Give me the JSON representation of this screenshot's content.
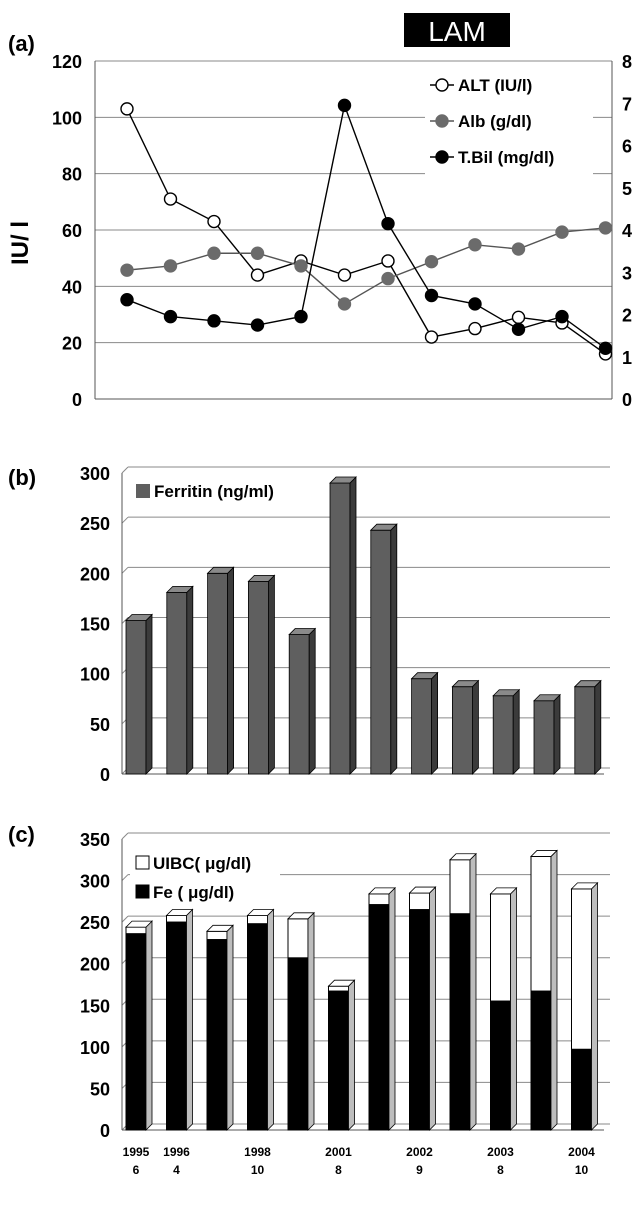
{
  "banner": "LAM",
  "colors": {
    "alt_marker": "#ffffff",
    "alb_marker": "#6b6b6b",
    "tbil_marker": "#000000",
    "ferritin_bar": "#5f5f5f",
    "fe_bar": "#000000",
    "uibc_bar": "#ffffff",
    "grid": "#8a8a8a"
  },
  "chart_data": [
    {
      "panel": "(a)",
      "type": "line",
      "ylabel": "IU/ l",
      "ylim": [
        0,
        120
      ],
      "y_ticks": [
        "0",
        "20",
        "40",
        "60",
        "80",
        "100",
        "120"
      ],
      "y2lim": [
        0,
        8
      ],
      "y2_ticks": [
        "0",
        "1",
        "2",
        "3",
        "4",
        "5",
        "6",
        "7",
        "8"
      ],
      "grid": true,
      "legend_position": "top-right",
      "x": [
        1,
        2,
        3,
        4,
        5,
        6,
        7,
        8,
        9,
        10,
        11,
        12
      ],
      "series": [
        {
          "name": "ALT (IU/l)",
          "axis": "left",
          "marker": "open-circle",
          "values": [
            103,
            71,
            63,
            44,
            49,
            44,
            49,
            22,
            25,
            29,
            27,
            16
          ]
        },
        {
          "name": "Alb (g/dl)",
          "axis": "right",
          "marker": "gray-circle",
          "values": [
            3.05,
            3.15,
            3.45,
            3.45,
            3.15,
            2.25,
            2.85,
            3.25,
            3.65,
            3.55,
            3.95,
            4.05
          ]
        },
        {
          "name": "T.Bil (mg/dl)",
          "axis": "right",
          "marker": "filled-circle",
          "values": [
            2.35,
            1.95,
            1.85,
            1.75,
            1.95,
            6.95,
            4.15,
            2.45,
            2.25,
            1.65,
            1.95,
            1.2
          ]
        }
      ]
    },
    {
      "panel": "(b)",
      "type": "bar",
      "ylim": [
        0,
        300
      ],
      "y_ticks": [
        "0",
        "50",
        "100",
        "150",
        "200",
        "250",
        "300"
      ],
      "grid": true,
      "legend_position": "top-left",
      "series": [
        {
          "name": "Ferritin (ng/ml)",
          "values": [
            153,
            181,
            200,
            192,
            139,
            290,
            243,
            95,
            87,
            78,
            73,
            87
          ]
        }
      ]
    },
    {
      "panel": "(c)",
      "type": "bar",
      "stacked": true,
      "ylim": [
        0,
        350
      ],
      "y_ticks": [
        "0",
        "50",
        "100",
        "150",
        "200",
        "250",
        "300",
        "350"
      ],
      "grid": true,
      "legend_position": "top-left",
      "categories": [
        "1995\n6",
        "1996\n4",
        "",
        "1998\n10",
        "",
        "2001\n8",
        "",
        "2002\n9",
        "",
        "2003\n8",
        "",
        "2004\n10"
      ],
      "series": [
        {
          "name": "Fe ( μg/dl)",
          "values": [
            236,
            250,
            229,
            248,
            207,
            167,
            271,
            265,
            260,
            155,
            167,
            97
          ]
        },
        {
          "name": "UIBC( μg/dl)",
          "values": [
            8,
            8,
            10,
            10,
            47,
            6,
            13,
            20,
            65,
            129,
            162,
            193
          ]
        }
      ]
    }
  ]
}
